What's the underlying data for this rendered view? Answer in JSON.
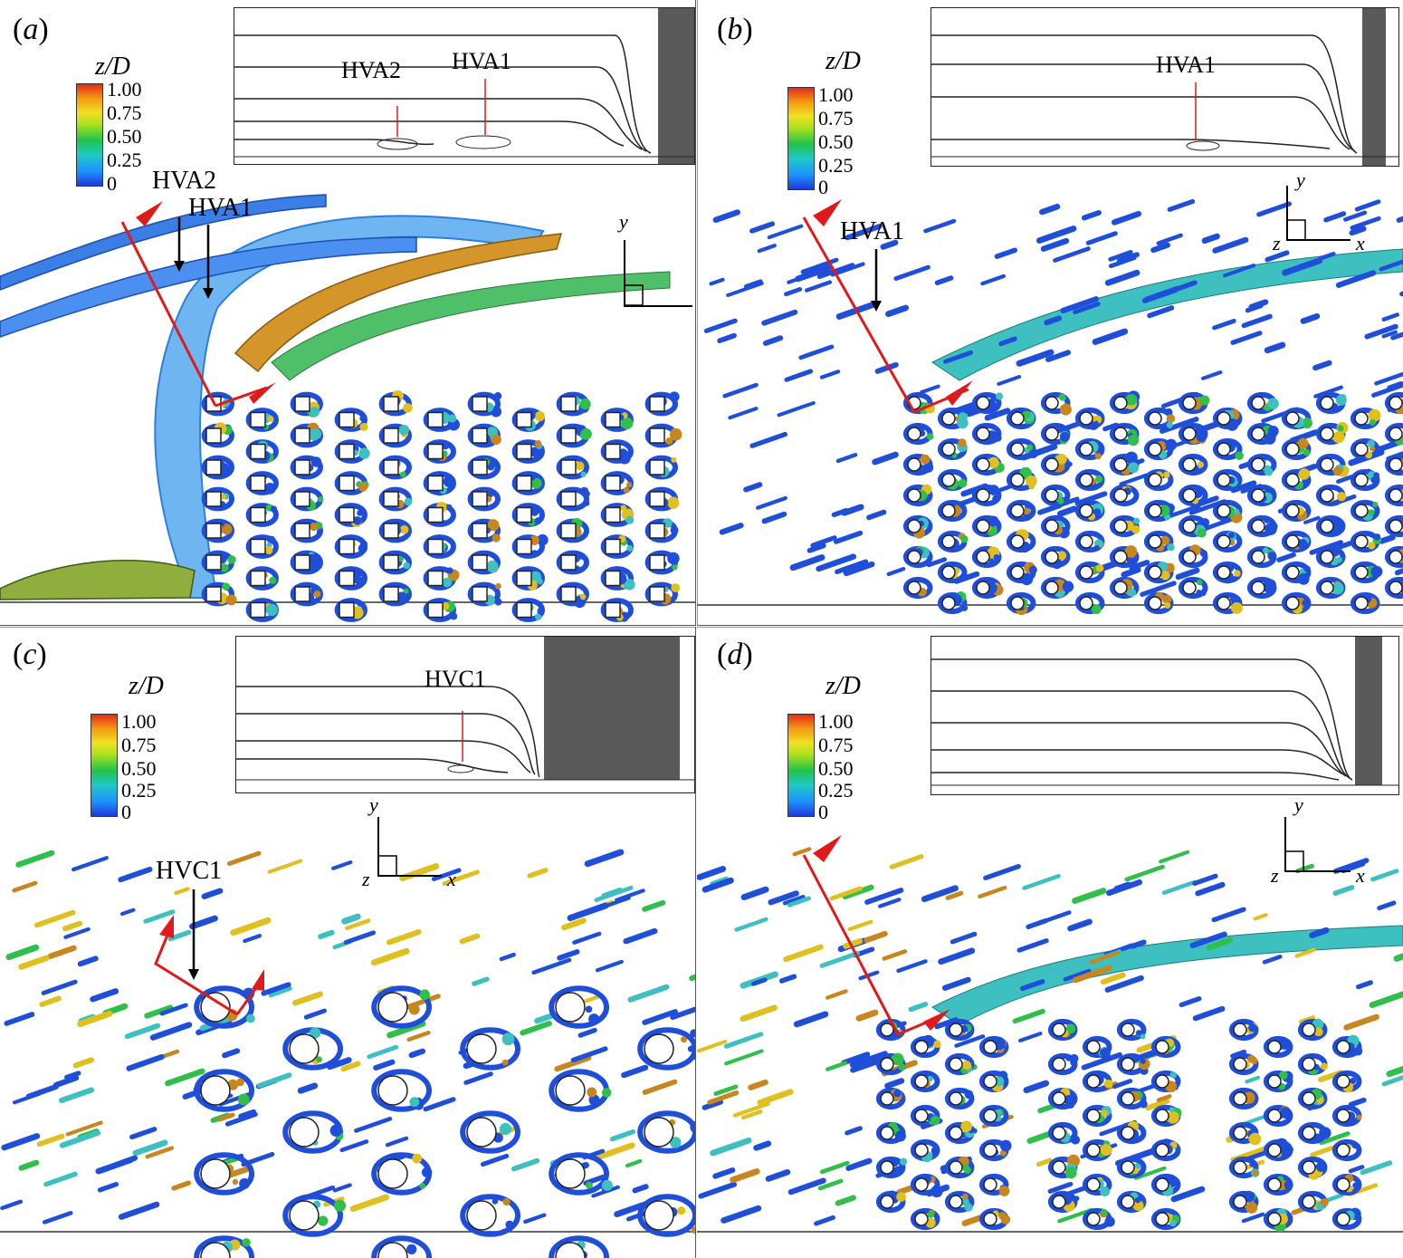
{
  "colorbar": {
    "title": "z/D",
    "ticks": [
      "1.00",
      "0.75",
      "0.50",
      "0.25",
      "0"
    ]
  },
  "axes": {
    "x": "x",
    "y": "y",
    "z": "z"
  },
  "panels": [
    {
      "label_letter": "a",
      "annotations": [
        "HVA2",
        "HVA1"
      ],
      "inset_annotations": [
        "HVA2",
        "HVA1"
      ],
      "cylinder_shape": "square"
    },
    {
      "label_letter": "b",
      "annotations": [
        "HVA1"
      ],
      "inset_annotations": [
        "HVA1"
      ],
      "cylinder_shape": "circle"
    },
    {
      "label_letter": "c",
      "annotations": [
        "HVC1"
      ],
      "inset_annotations": [
        "HVC1"
      ],
      "cylinder_shape": "circle-large"
    },
    {
      "label_letter": "d",
      "annotations": [],
      "inset_annotations": [],
      "cylinder_shape": "circle-grouped"
    }
  ],
  "colors": {
    "vortex_low": "#1f4fd8",
    "vortex_mid": "#2fbf4a",
    "vortex_high": "#c8861e",
    "arrow_red": "#e01a1a",
    "wall_gray": "#595959"
  }
}
